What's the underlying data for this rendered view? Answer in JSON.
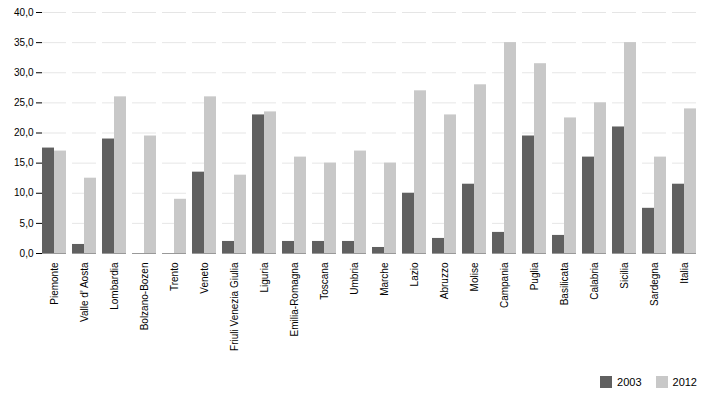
{
  "chart_data": {
    "type": "bar",
    "categories": [
      "Piemonte",
      "Valle d’ Aosta",
      "Lombardia",
      "Bolzano-Bozen",
      "Trento",
      "Veneto",
      "Friuli Venezia Giulia",
      "Liguria",
      "Emilia-Romagna",
      "Toscana",
      "Umbria",
      "Marche",
      "Lazio",
      "Abruzzo",
      "Molise",
      "Campania",
      "Puglia",
      "Basilicata",
      "Calabria",
      "Sicilia",
      "Sardegna",
      "Italia"
    ],
    "series": [
      {
        "name": "2003",
        "color": "#606060",
        "values": [
          17.5,
          1.5,
          19.0,
          0.0,
          0.0,
          13.5,
          2.0,
          23.0,
          2.0,
          2.0,
          2.0,
          1.0,
          10.0,
          2.5,
          11.5,
          3.5,
          19.5,
          3.0,
          16.0,
          21.0,
          7.5,
          11.5
        ]
      },
      {
        "name": "2012",
        "color": "#c8c8c8",
        "values": [
          17.0,
          12.5,
          26.0,
          19.5,
          9.0,
          26.0,
          13.0,
          23.5,
          16.0,
          15.0,
          17.0,
          15.0,
          27.0,
          23.0,
          28.0,
          35.0,
          31.5,
          22.5,
          25.0,
          35.0,
          16.0,
          24.0
        ]
      }
    ],
    "ylim": [
      0,
      40
    ],
    "yticks": [
      {
        "value": 0,
        "label": "0,0"
      },
      {
        "value": 5,
        "label": "5,0"
      },
      {
        "value": 10,
        "label": "10,0"
      },
      {
        "value": 15,
        "label": "15,0"
      },
      {
        "value": 20,
        "label": "20,0"
      },
      {
        "value": 25,
        "label": "25,0"
      },
      {
        "value": 30,
        "label": "30,0"
      },
      {
        "value": 35,
        "label": "35,0"
      },
      {
        "value": 40,
        "label": "40,0"
      }
    ],
    "grid": true,
    "legend": "lower right"
  }
}
